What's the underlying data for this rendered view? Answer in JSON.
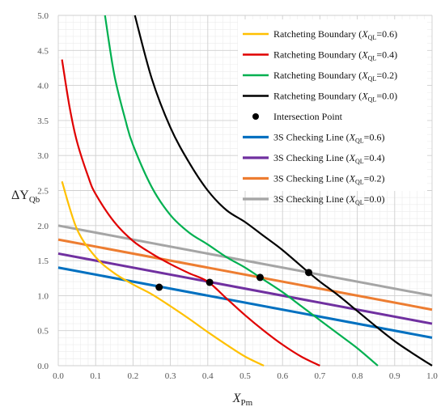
{
  "chart_data": {
    "type": "line",
    "title": "",
    "xlabel": {
      "main": "X",
      "sub": "Pm"
    },
    "ylabel": {
      "main": "ΔY",
      "sub": "Qb"
    },
    "xlim": [
      0.0,
      1.0
    ],
    "ylim": [
      0.0,
      5.0
    ],
    "x_ticks": [
      "0.0",
      "0.1",
      "0.2",
      "0.3",
      "0.4",
      "0.5",
      "0.6",
      "0.7",
      "0.8",
      "0.9",
      "1.0"
    ],
    "y_ticks": [
      "0.0",
      "0.5",
      "1.0",
      "1.5",
      "2.0",
      "2.5",
      "3.0",
      "3.5",
      "4.0",
      "4.5",
      "5.0"
    ],
    "grid": true,
    "legend_position": "top-right",
    "series": [
      {
        "name": "Ratcheting Boundary (XQL=0.6)",
        "legend": {
          "prefix": "Ratcheting Boundary (",
          "var": "X",
          "sub": "QL",
          "suffix": "=0.6)"
        },
        "kind": "curve",
        "color": "#FFC000",
        "x": [
          0.01,
          0.05,
          0.1,
          0.15,
          0.2,
          0.25,
          0.3,
          0.35,
          0.4,
          0.45,
          0.5,
          0.55
        ],
        "y": [
          2.63,
          1.95,
          1.55,
          1.32,
          1.16,
          1.02,
          0.85,
          0.67,
          0.48,
          0.3,
          0.13,
          0.0
        ]
      },
      {
        "name": "Ratcheting Boundary (XQL=0.4)",
        "legend": {
          "prefix": "Ratcheting Boundary (",
          "var": "X",
          "sub": "QL",
          "suffix": "=0.4)"
        },
        "kind": "curve",
        "color": "#E00000",
        "x": [
          0.01,
          0.03,
          0.05,
          0.08,
          0.1,
          0.15,
          0.2,
          0.25,
          0.3,
          0.35,
          0.4,
          0.45,
          0.5,
          0.55,
          0.6,
          0.65,
          0.7
        ],
        "y": [
          4.37,
          3.7,
          3.2,
          2.7,
          2.45,
          2.05,
          1.78,
          1.6,
          1.45,
          1.32,
          1.2,
          0.96,
          0.72,
          0.5,
          0.3,
          0.13,
          0.0
        ]
      },
      {
        "name": "Ratcheting Boundary (XQL=0.2)",
        "legend": {
          "prefix": "Ratcheting Boundary (",
          "var": "X",
          "sub": "QL",
          "suffix": "=0.2)"
        },
        "kind": "curve",
        "color": "#00B050",
        "x": [
          0.125,
          0.15,
          0.18,
          0.2,
          0.25,
          0.3,
          0.35,
          0.4,
          0.45,
          0.5,
          0.54,
          0.6,
          0.65,
          0.7,
          0.75,
          0.8,
          0.855
        ],
        "y": [
          5.0,
          4.15,
          3.5,
          3.15,
          2.55,
          2.15,
          1.9,
          1.73,
          1.55,
          1.4,
          1.26,
          1.05,
          0.85,
          0.65,
          0.45,
          0.25,
          0.0
        ]
      },
      {
        "name": "Ratcheting Boundary (XQL=0.0)",
        "legend": {
          "prefix": "Ratcheting Boundary (",
          "var": "X",
          "sub": "QL",
          "suffix": "=0.0)"
        },
        "kind": "curve",
        "color": "#000000",
        "x": [
          0.205,
          0.25,
          0.3,
          0.35,
          0.4,
          0.45,
          0.5,
          0.55,
          0.6,
          0.67,
          0.7,
          0.75,
          0.8,
          0.85,
          0.9,
          0.95,
          1.0
        ],
        "y": [
          5.0,
          4.1,
          3.4,
          2.9,
          2.5,
          2.22,
          2.05,
          1.85,
          1.65,
          1.33,
          1.2,
          1.0,
          0.78,
          0.56,
          0.35,
          0.17,
          0.0
        ]
      },
      {
        "name": "Intersection Point",
        "legend": {
          "prefix": "Intersection Point",
          "var": "",
          "sub": "",
          "suffix": ""
        },
        "kind": "points",
        "color": "#000000",
        "x": [
          0.27,
          0.405,
          0.54,
          0.67
        ],
        "y": [
          1.12,
          1.19,
          1.26,
          1.33
        ]
      },
      {
        "name": "3S Checking Line (XQL=0.6)",
        "legend": {
          "prefix": "3S Checking Line (",
          "var": "X",
          "sub": "QL",
          "suffix": "=0.6)"
        },
        "kind": "line",
        "color": "#0070C0",
        "x": [
          0.0,
          1.0
        ],
        "y": [
          1.4,
          0.4
        ]
      },
      {
        "name": "3S Checking Line (XQL=0.4)",
        "legend": {
          "prefix": "3S Checking Line (",
          "var": "X",
          "sub": "QL",
          "suffix": "=0.4)"
        },
        "kind": "line",
        "color": "#7030A0",
        "x": [
          0.0,
          1.0
        ],
        "y": [
          1.6,
          0.6
        ]
      },
      {
        "name": "3S Checking Line (XQL=0.2)",
        "legend": {
          "prefix": "3S Checking Line (",
          "var": "X",
          "sub": "QL",
          "suffix": "=0.2)"
        },
        "kind": "line",
        "color": "#ED7D31",
        "x": [
          0.0,
          1.0
        ],
        "y": [
          1.8,
          0.8
        ]
      },
      {
        "name": "3S Checking Line (XQL=0.0)",
        "legend": {
          "prefix": "3S Checking Line (",
          "var": "X",
          "sub": "QL",
          "suffix": "=0.0)"
        },
        "kind": "line",
        "color": "#A5A5A5",
        "x": [
          0.0,
          1.0
        ],
        "y": [
          2.0,
          1.0
        ]
      }
    ]
  }
}
